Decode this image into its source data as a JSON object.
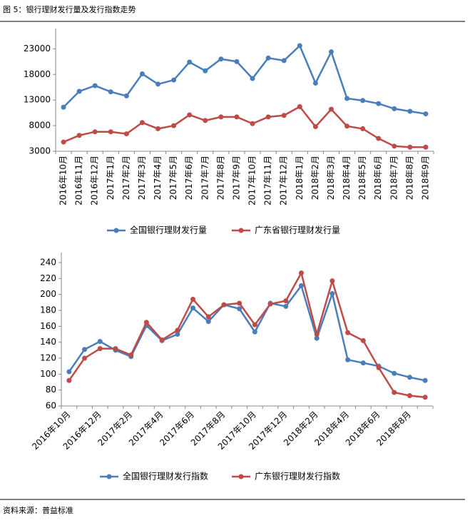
{
  "title": "图 5：银行理财发行量及发行指数走势",
  "source": "资料来源：普益标准",
  "chart_data": [
    {
      "type": "line",
      "categories": [
        "2016年10月",
        "2016年11月",
        "2016年12月",
        "2017年1月",
        "2017年2月",
        "2017年3月",
        "2017年4月",
        "2017年5月",
        "2017年6月",
        "2017年7月",
        "2017年8月",
        "2017年9月",
        "2017年10月",
        "2017年11月",
        "2017年12月",
        "2018年1月",
        "2018年2月",
        "2018年3月",
        "2018年4月",
        "2018年5月",
        "2018年6月",
        "2018年7月",
        "2018年8月",
        "2018年9月"
      ],
      "series": [
        {
          "name": "全国银行理财发行量",
          "color": "#4a7ebb",
          "values": [
            11600,
            14700,
            15800,
            14600,
            13800,
            18100,
            16100,
            16900,
            20400,
            18700,
            21000,
            20500,
            17200,
            21200,
            20700,
            23600,
            16300,
            22400,
            13300,
            12900,
            12300,
            11300,
            10800,
            10300
          ]
        },
        {
          "name": "广东省银行理财发行量",
          "color": "#be4b48",
          "values": [
            4800,
            6100,
            6800,
            6800,
            6400,
            8600,
            7400,
            8000,
            10100,
            9000,
            9700,
            9700,
            8400,
            9700,
            10000,
            11700,
            7800,
            11200,
            7900,
            7400,
            5500,
            4000,
            3800,
            3800
          ]
        }
      ],
      "ylim": [
        3000,
        25000
      ],
      "yticks": [
        3000,
        8000,
        13000,
        18000,
        23000
      ],
      "legend": "bottom"
    },
    {
      "type": "line",
      "categories": [
        "2016年10月",
        null,
        "2016年12月",
        null,
        "2017年2月",
        null,
        "2017年4月",
        null,
        "2017年6月",
        null,
        "2017年8月",
        null,
        "2017年10月",
        null,
        "2017年12月",
        null,
        "2018年2月",
        null,
        "2018年4月",
        null,
        "2018年6月",
        null,
        "2018年8月",
        null
      ],
      "series": [
        {
          "name": "全国银行理财发行指数",
          "color": "#4a7ebb",
          "values": [
            103,
            131,
            141,
            130,
            122,
            161,
            142,
            150,
            183,
            166,
            187,
            182,
            153,
            189,
            185,
            211,
            145,
            201,
            118,
            114,
            110,
            101,
            96,
            92
          ]
        },
        {
          "name": "广东银行理财发行指数",
          "color": "#be4b48",
          "values": [
            92,
            120,
            132,
            132,
            124,
            165,
            143,
            155,
            194,
            172,
            187,
            189,
            162,
            188,
            192,
            227,
            150,
            217,
            152,
            142,
            108,
            77,
            73,
            71
          ]
        }
      ],
      "ylim": [
        60,
        240
      ],
      "yticks": [
        60,
        80,
        100,
        120,
        140,
        160,
        180,
        200,
        220,
        240
      ],
      "legend": "bottom"
    }
  ]
}
